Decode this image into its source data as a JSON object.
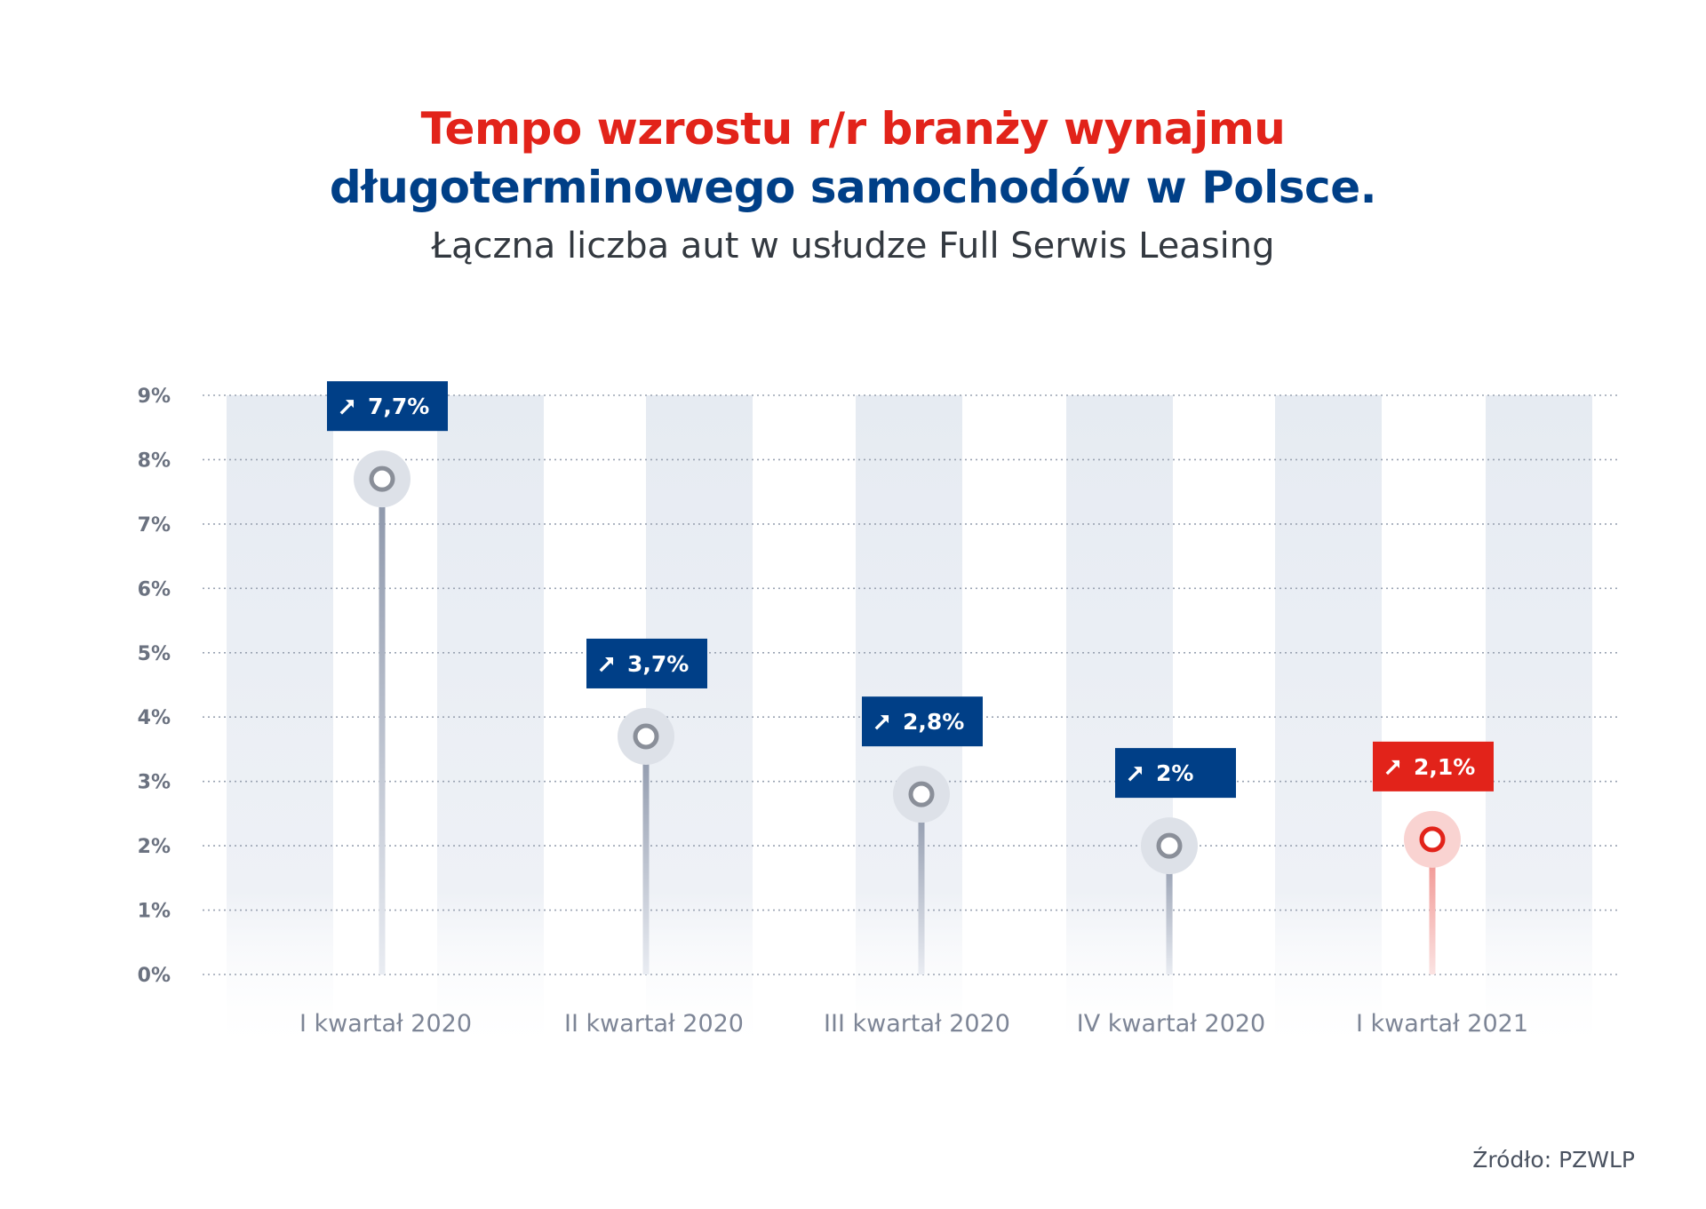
{
  "header": {
    "title_line1": "Tempo wzrostu r/r branży wynajmu",
    "title_line2": "długoterminowego samochodów w Polsce.",
    "subtitle": "Łączna liczba aut w usłudze Full Serwis Leasing"
  },
  "source": "Źródło: PZWLP",
  "colors": {
    "title_red": "#e2231a",
    "title_blue": "#003f87",
    "label_blue": "#003f87",
    "highlight_red": "#e2231a",
    "band": "#e8edf4",
    "axis_text": "#6b7280",
    "category_text": "#7d8596"
  },
  "chart_data": {
    "type": "lollipop",
    "categories": [
      "I kwartał 2020",
      "II kwartał 2020",
      "III kwartał 2020",
      "IV kwartał 2020",
      "I kwartał 2021"
    ],
    "values": [
      7.7,
      3.7,
      2.8,
      2,
      2.1
    ],
    "value_labels": [
      "7,7%",
      "3,7%",
      "2,8%",
      "2%",
      "2,1%"
    ],
    "highlight_index": 4,
    "y_ticks": [
      "0%",
      "1%",
      "2%",
      "3%",
      "4%",
      "5%",
      "6%",
      "7%",
      "8%",
      "9%"
    ],
    "ylim": [
      0,
      9
    ],
    "grid": true,
    "label_icon": "arrow-up-right-icon"
  }
}
